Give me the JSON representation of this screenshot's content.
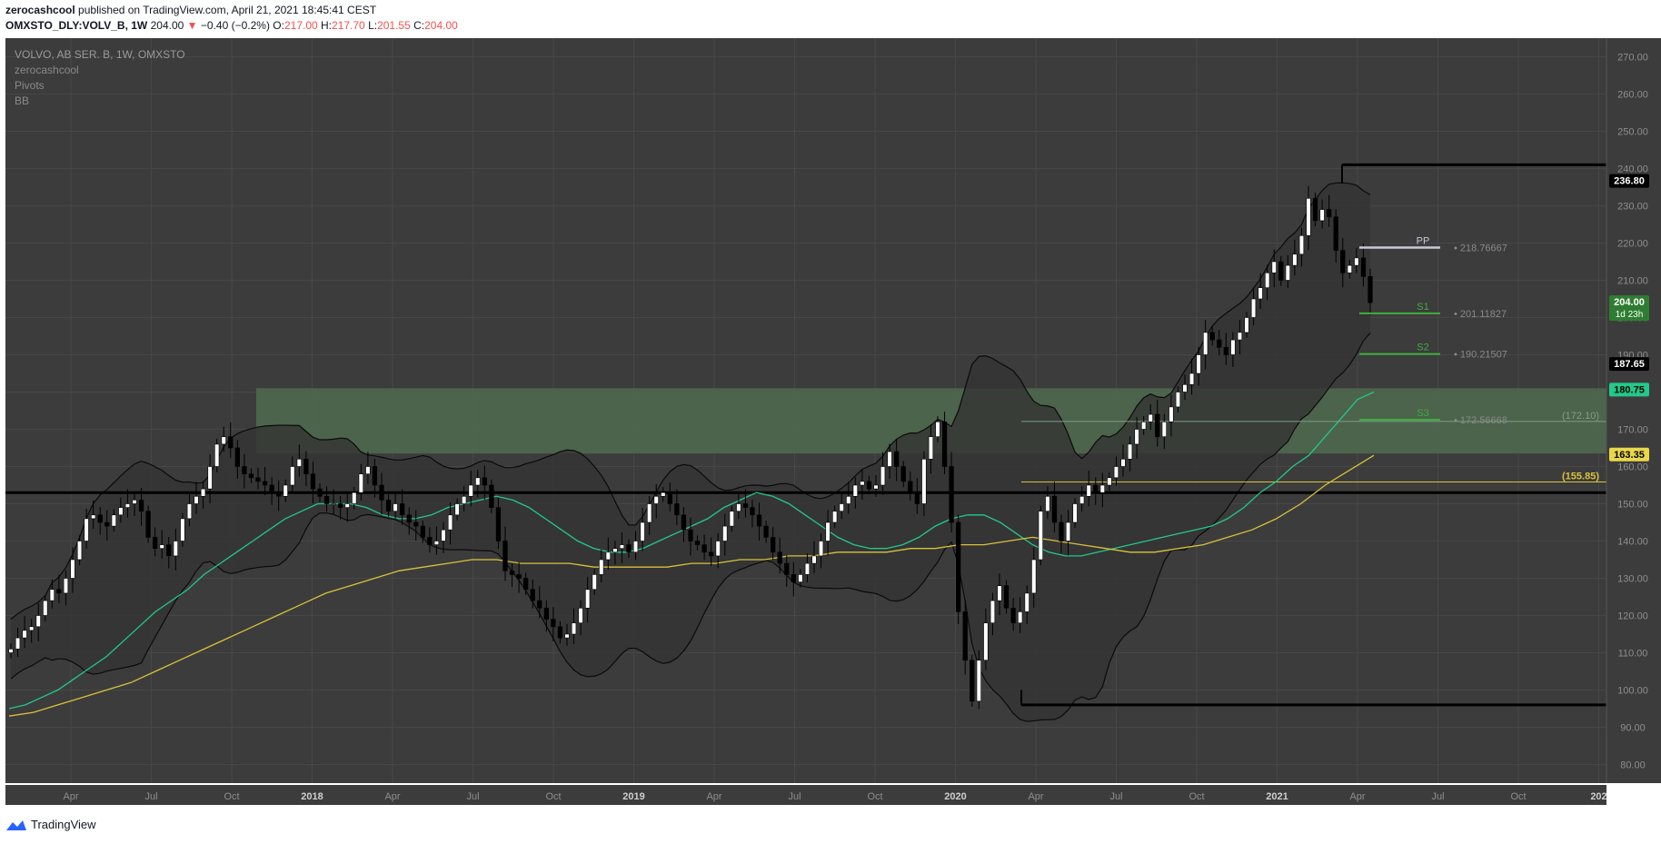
{
  "header": {
    "author": "zerocashcool",
    "published_text": "published on TradingView.com, April 21, 2021 18:45:41 CEST",
    "symbol": "OMXSTO_DLY:VOLV_B, 1W",
    "last_price": "204.00",
    "change_arrow": "▼",
    "change": "−0.40 (−0.2%)",
    "o_label": "O:",
    "o_value": "217.00",
    "h_label": "H:",
    "h_value": "217.70",
    "l_label": "L:",
    "l_value": "201.55",
    "c_label": "C:",
    "c_value": "204.00"
  },
  "legend": {
    "title": "VOLVO, AB SER. B, 1W, OMXSTO",
    "author": "zerocashcool",
    "pivots": "Pivots",
    "bb": "BB"
  },
  "footer": {
    "brand": "TradingView"
  },
  "colors": {
    "bg": "#3c3c3c",
    "grid": "#474747",
    "up": "#ffffff",
    "down": "#000000",
    "bb_fill": "#333333",
    "ma_green": "#22c98a",
    "ma_yellow": "#d9c23a",
    "zone": "#4f6a4f",
    "pivot_pp": "#c9c9d9",
    "pivot_s": "#3fae3f"
  },
  "chart_data": {
    "type": "candlestick",
    "title": "VOLVO, AB SER. B, 1W, OMXSTO",
    "timeframe": "1W",
    "ylim": [
      75,
      275
    ],
    "y_ticks": [
      "80.00",
      "90.00",
      "100.00",
      "110.00",
      "120.00",
      "130.00",
      "140.00",
      "150.00",
      "160.00",
      "170.00",
      "180.00",
      "190.00",
      "200.00",
      "210.00",
      "220.00",
      "230.00",
      "240.00",
      "250.00",
      "260.00",
      "270.00"
    ],
    "x_labels": [
      "Apr",
      "Jul",
      "Oct",
      "2018",
      "Apr",
      "Jul",
      "Oct",
      "2019",
      "Apr",
      "Jul",
      "Oct",
      "2020",
      "Apr",
      "Jul",
      "Oct",
      "2021",
      "Apr",
      "Jul",
      "Oct",
      "202"
    ],
    "ohlc_weekly_close": [
      111,
      114,
      116,
      117,
      120,
      124,
      127,
      126,
      130,
      135,
      140,
      146,
      147,
      145,
      144,
      147,
      149,
      150,
      151,
      148,
      141,
      138,
      139,
      136,
      140,
      146,
      150,
      152,
      154,
      160,
      166,
      168,
      165,
      160,
      158,
      157,
      156,
      155,
      153,
      152,
      155,
      160,
      162,
      158,
      154,
      152,
      150,
      150,
      149,
      150,
      153,
      158,
      160,
      155,
      151,
      148,
      150,
      147,
      145,
      144,
      141,
      139,
      140,
      143,
      147,
      150,
      152,
      155,
      157,
      155,
      149,
      140,
      132,
      131,
      130,
      127,
      124,
      122,
      119,
      117,
      114,
      115,
      118,
      122,
      127,
      131,
      135,
      137,
      138,
      139,
      137,
      140,
      145,
      150,
      152,
      153,
      150,
      147,
      143,
      140,
      139,
      137,
      136,
      140,
      144,
      148,
      150,
      149,
      147,
      144,
      141,
      137,
      134,
      131,
      129,
      131,
      134,
      136,
      140,
      145,
      148,
      150,
      152,
      155,
      156,
      154,
      155,
      160,
      164,
      160,
      156,
      153,
      150,
      162,
      168,
      172,
      160,
      145,
      121,
      108,
      97,
      108,
      118,
      124,
      128,
      122,
      118,
      121,
      126,
      135,
      148,
      152,
      145,
      140,
      145,
      150,
      152,
      155,
      153,
      155,
      157,
      160,
      162,
      166,
      170,
      172,
      174,
      168,
      172,
      176,
      180,
      182,
      185,
      190,
      196,
      194,
      192,
      190,
      194,
      196,
      200,
      205,
      208,
      212,
      215,
      210,
      214,
      217,
      222,
      232,
      226,
      229,
      227,
      218,
      212,
      214,
      216,
      211,
      204
    ],
    "series": [
      {
        "name": "SMA (green)",
        "color": "#22c98a",
        "values": [
          95,
          96,
          98,
          100,
          103,
          106,
          109,
          113,
          117,
          121,
          124,
          127,
          131,
          134,
          137,
          140,
          143,
          146,
          148,
          150,
          150,
          150,
          149,
          147,
          146,
          146,
          147,
          149,
          150,
          151,
          152,
          151,
          149,
          146,
          143,
          140,
          138,
          137,
          137,
          138,
          140,
          142,
          144,
          146,
          149,
          151,
          153,
          152,
          150,
          147,
          144,
          141,
          139,
          138,
          138,
          139,
          141,
          144,
          146,
          147,
          147,
          145,
          142,
          139,
          137,
          136,
          136,
          137,
          138,
          139,
          140,
          141,
          142,
          143,
          144,
          146,
          149,
          153,
          156,
          160,
          163,
          168,
          173,
          178,
          180
        ]
      },
      {
        "name": "SMA (yellow)",
        "color": "#d9c23a",
        "values": [
          93,
          94,
          96,
          98,
          100,
          102,
          105,
          108,
          111,
          114,
          117,
          120,
          123,
          126,
          128,
          130,
          132,
          133,
          134,
          135,
          135,
          134,
          134,
          134,
          133,
          133,
          133,
          133,
          134,
          134,
          135,
          135,
          136,
          136,
          137,
          137,
          137,
          138,
          138,
          139,
          139,
          140,
          141,
          140,
          139,
          138,
          137,
          137,
          138,
          139,
          141,
          143,
          146,
          150,
          155,
          159,
          163
        ]
      }
    ],
    "levels": [
      {
        "name": "PP",
        "value": 218.76667,
        "label": "218.76667"
      },
      {
        "name": "S1",
        "value": 201.11827,
        "label": "201.11827"
      },
      {
        "name": "S2",
        "value": 190.21507,
        "label": "190.21507"
      },
      {
        "name": "S3",
        "value": 172.56668,
        "label": "172.56668"
      }
    ],
    "horizontal_lines": [
      {
        "value": 241.0,
        "color": "#000000"
      },
      {
        "value": 153.0,
        "color": "#000000"
      },
      {
        "value": 96.0,
        "color": "#000000"
      },
      {
        "value": 155.85,
        "label": "(155.85)",
        "color": "#d9c23a"
      },
      {
        "value": 172.1,
        "label": "(172.10)",
        "color": "#7f9f7f"
      }
    ],
    "zone": {
      "from": 163.5,
      "to": 181
    },
    "price_badges": [
      {
        "label": "236.80",
        "value": 236.8,
        "bg": "#000000",
        "fg": "#ffffff"
      },
      {
        "label": "204.00",
        "sub": "1d 23h",
        "value": 204.0,
        "bg": "#2e7d32",
        "fg": "#ffffff"
      },
      {
        "label": "187.65",
        "value": 187.65,
        "bg": "#000000",
        "fg": "#ffffff"
      },
      {
        "label": "180.75",
        "value": 180.75,
        "bg": "#22c98a",
        "fg": "#000000"
      },
      {
        "label": "163.35",
        "value": 163.35,
        "bg": "#e8d84a",
        "fg": "#000000"
      }
    ]
  }
}
